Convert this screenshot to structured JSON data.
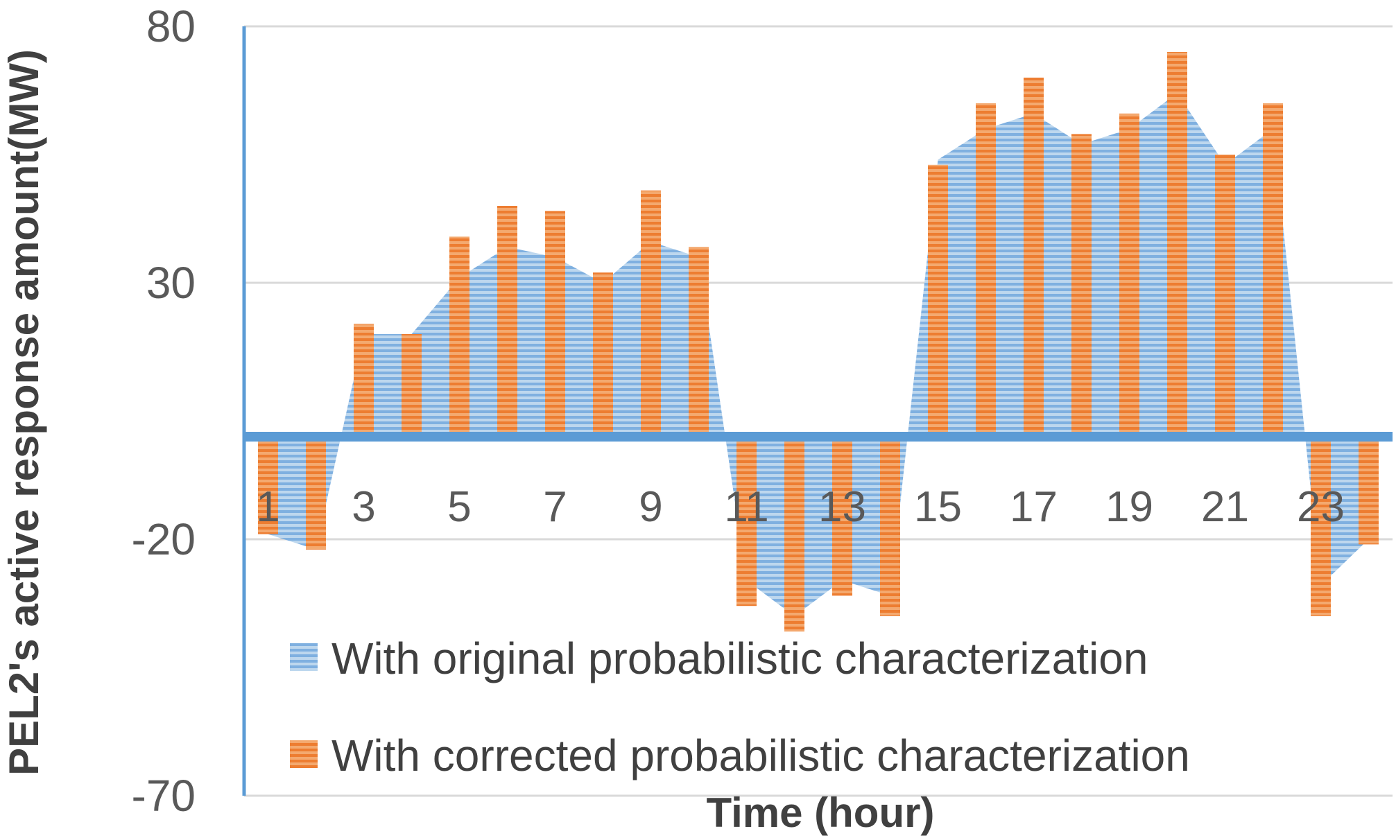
{
  "chart_data": {
    "type": "bar",
    "xlabel": "Time (hour)",
    "ylabel": "PEL2's active response amount(MW)",
    "ylim": [
      -70,
      80
    ],
    "y_ticks": [
      "80",
      "30",
      "-20",
      "-70"
    ],
    "y_tick_values": [
      80,
      30,
      -20,
      -70
    ],
    "x": [
      1,
      2,
      3,
      4,
      5,
      6,
      7,
      8,
      9,
      10,
      11,
      12,
      13,
      14,
      15,
      16,
      17,
      18,
      19,
      20,
      21,
      22,
      23,
      24
    ],
    "x_tick_labels": [
      "1",
      "3",
      "5",
      "7",
      "9",
      "11",
      "13",
      "15",
      "17",
      "19",
      "21",
      "23"
    ],
    "x_tick_values": [
      1,
      3,
      5,
      7,
      9,
      11,
      13,
      15,
      17,
      19,
      21,
      23
    ],
    "grid": true,
    "legend_position": "bottom-left",
    "series": [
      {
        "name": "With original probabilistic characterization",
        "type": "area",
        "color": "#5B9BD5",
        "values": [
          -19,
          -22,
          20,
          20,
          31,
          37,
          35,
          30,
          38,
          35,
          -28,
          -35,
          -28,
          -31,
          54,
          60,
          63,
          57,
          60,
          67,
          53,
          60,
          -29,
          -20
        ]
      },
      {
        "name": "With corrected probabilistic characterization",
        "type": "bar",
        "color": "#ED7D31",
        "values": [
          -19,
          -22,
          22,
          20,
          39,
          45,
          44,
          32,
          48,
          37,
          -33,
          -38,
          -31,
          -35,
          53,
          65,
          70,
          59,
          63,
          75,
          55,
          65,
          -35,
          -21
        ]
      }
    ]
  }
}
